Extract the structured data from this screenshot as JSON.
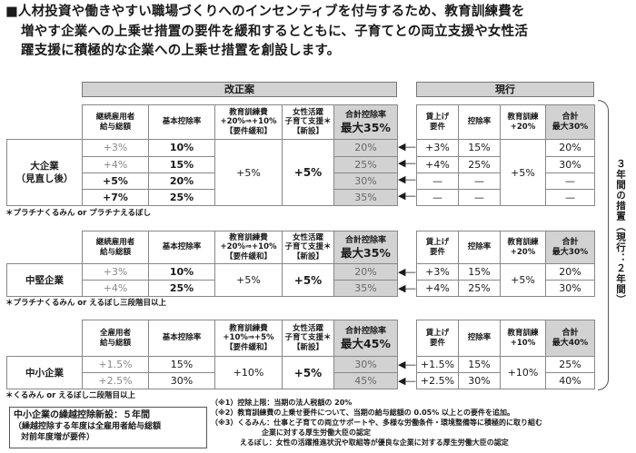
{
  "intro": [
    "■人材投資や働きやすい職場づくりへのインセンティブを付与するため、教育訓練費を",
    "増やす企業への上乗せ措置の要件を緩和するとともに、子育てとの両立支援や女性活",
    "躍支援に積極的な企業への上乗せ措置を創設します。"
  ],
  "reform_label": "改正案",
  "current_label": "現行",
  "side_label": "３年間の措置（現行：２年間）",
  "large": {
    "col_wage": "継続雇用者\n給与総額",
    "col_base": "基本控除率",
    "col_edu": "教育訓練費\n+20%⇒+10%\n【要件緩和】",
    "col_women": "女性活躍\n子育て支援＊\n【新設】",
    "col_total_small": "合計控除率",
    "col_total_big": "最大35%",
    "label": "大企業\n（見直し後）",
    "rows": [
      {
        "wage": "+3%",
        "base": "10%",
        "total": "20%"
      },
      {
        "wage": "+4%",
        "base": "15%",
        "total": "25%"
      },
      {
        "wage": "+5%",
        "base": "20%",
        "total": "30%"
      },
      {
        "wage": "+7%",
        "base": "25%",
        "total": "35%"
      }
    ],
    "edu_val": "+5%",
    "women_val": "+5%",
    "note": "＊プラチナくるみん or プラチナえるぼし",
    "cur_wage_req": "賃上げ\n要件",
    "cur_rate": "控除率",
    "cur_edu": "教育訓練\n+20%",
    "cur_total_small": "合計",
    "cur_total_big": "最大30%",
    "cur_rows": [
      {
        "wage": "+3%",
        "rate": "15%",
        "total": "20%"
      },
      {
        "wage": "+4%",
        "rate": "25%",
        "total": "30%"
      },
      {
        "wage": "—",
        "rate": "—",
        "total": "—"
      },
      {
        "wage": "—",
        "rate": "—",
        "total": "—"
      }
    ],
    "cur_edu_val": "+5%"
  },
  "mid": {
    "col_wage": "継続雇用者\n給与総額",
    "col_base": "基本控除率",
    "col_edu": "教育訓練費\n+20%⇒+10%\n【要件緩和】",
    "col_women": "女性活躍\n子育て支援＊\n【新設】",
    "col_total_small": "合計控除率",
    "col_total_big": "最大35%",
    "label": "中堅企業",
    "rows": [
      {
        "wage": "+3%",
        "base": "10%",
        "total": "20%"
      },
      {
        "wage": "+4%",
        "base": "25%",
        "total": "35%"
      }
    ],
    "edu_val": "+5%",
    "women_val": "+5%",
    "note": "＊プラチナくるみん or えるぼし三段階目以上",
    "cur_wage_req": "賃上げ\n要件",
    "cur_rate": "控除率",
    "cur_edu": "教育訓練\n+20%",
    "cur_total_small": "合計",
    "cur_total_big": "最大30%",
    "cur_rows": [
      {
        "wage": "+3%",
        "rate": "15%",
        "total": "20%"
      },
      {
        "wage": "+4%",
        "rate": "25%",
        "total": "30%"
      }
    ],
    "cur_edu_val": "+5%"
  },
  "small": {
    "col_wage": "全雇用者\n給与総額",
    "col_base": "基本控除率",
    "col_edu": "教育訓練費\n+10%⇒+5%\n【要件緩和】",
    "col_women": "女性活躍\n子育て支援＊\n【新設】",
    "col_total_small": "合計控除率",
    "col_total_big": "最大45%",
    "label": "中小企業",
    "rows": [
      {
        "wage": "+1.5%",
        "base": "15%",
        "total": "30%"
      },
      {
        "wage": "+2.5%",
        "base": "30%",
        "total": "45%"
      }
    ],
    "edu_val": "+10%",
    "women_val": "+5%",
    "note": "＊くるみん or えるぼし二段階目以上",
    "cur_wage_req": "賃上げ\n要件",
    "cur_rate": "控除率",
    "cur_edu": "教育訓練\n+10%",
    "cur_total_small": "合計",
    "cur_total_big": "最大40%",
    "cur_rows": [
      {
        "wage": "+1.5%",
        "rate": "15%",
        "total": "25%"
      },
      {
        "wage": "+2.5%",
        "rate": "30%",
        "total": "40%"
      }
    ],
    "cur_edu_val": "+10%"
  },
  "box": {
    "title": "中小企業の繰越控除新設：５年間",
    "line1": "（繰越控除する年度は全雇用者給与総額",
    "line2": "対前年度増が要件）"
  },
  "footnotes": [
    "（※1）控除上限：当期の法人税額の 20%",
    "（※2）教育訓練費の上乗せ要件について、当期の給与総額の 0.05% 以上との要件を追加。",
    "（※3）くるみん：仕事と子育ての両立サポートや、多様な労働条件・環境整備等に積極的に取り組む",
    "　　　　　　　企業に対する厚生労働大臣の認定",
    "　　　　えるぼし：女性の活躍推進状況や取組等が優良な企業に対する厚生労働大臣の認定"
  ]
}
